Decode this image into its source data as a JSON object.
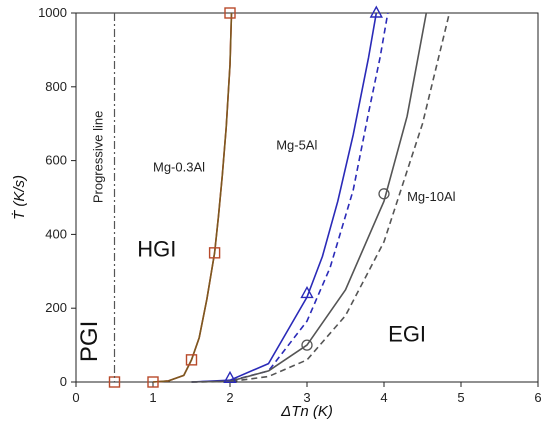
{
  "chart_data": {
    "type": "line",
    "xlabel": "ΔTn (K)",
    "ylabel": "Ṫ  (K/s)",
    "xlim": [
      0,
      6
    ],
    "ylim": [
      0,
      1000
    ],
    "xticks": [
      "0",
      "1",
      "2",
      "3",
      "4",
      "5",
      "6"
    ],
    "yticks": [
      "0",
      "200",
      "400",
      "600",
      "800",
      "1000"
    ],
    "grid": false,
    "series": [
      {
        "name": "Mg-0.3Al",
        "color": "#e03030",
        "dash": false,
        "line_points": [
          [
            1.0,
            0
          ],
          [
            1.2,
            3
          ],
          [
            1.4,
            18
          ],
          [
            1.5,
            60
          ],
          [
            1.6,
            120
          ],
          [
            1.7,
            225
          ],
          [
            1.8,
            350
          ],
          [
            1.85,
            450
          ],
          [
            1.9,
            560
          ],
          [
            1.95,
            690
          ],
          [
            2.0,
            860
          ],
          [
            2.02,
            1000
          ]
        ],
        "marker": "square",
        "marker_points": [
          [
            0.5,
            0
          ],
          [
            1.0,
            0
          ],
          [
            1.5,
            60
          ],
          [
            1.8,
            350
          ],
          [
            2.0,
            1000
          ]
        ]
      },
      {
        "name": "Mg-0.3Al fit",
        "color": "#7a5a20",
        "dash": false,
        "line_points": [
          [
            1.0,
            0
          ],
          [
            1.2,
            3
          ],
          [
            1.4,
            18
          ],
          [
            1.5,
            60
          ],
          [
            1.6,
            120
          ],
          [
            1.7,
            225
          ],
          [
            1.8,
            350
          ],
          [
            1.85,
            450
          ],
          [
            1.9,
            560
          ],
          [
            1.95,
            690
          ],
          [
            2.0,
            860
          ],
          [
            2.02,
            1000
          ]
        ]
      },
      {
        "name": "Mg-5Al",
        "color": "#2a2ab8",
        "dash": false,
        "line_points": [
          [
            1.5,
            0
          ],
          [
            2.0,
            5
          ],
          [
            2.5,
            50
          ],
          [
            3.0,
            230
          ],
          [
            3.2,
            340
          ],
          [
            3.4,
            490
          ],
          [
            3.6,
            670
          ],
          [
            3.8,
            880
          ],
          [
            3.9,
            1000
          ]
        ],
        "marker": "triangle",
        "marker_points": [
          [
            2.0,
            10
          ],
          [
            3.0,
            240
          ],
          [
            3.9,
            1000
          ]
        ]
      },
      {
        "name": "Mg-5Al dashed",
        "color": "#2a2ab8",
        "dash": true,
        "line_points": [
          [
            1.5,
            0
          ],
          [
            2.0,
            3
          ],
          [
            2.5,
            30
          ],
          [
            3.0,
            165
          ],
          [
            3.3,
            310
          ],
          [
            3.6,
            520
          ],
          [
            3.8,
            730
          ],
          [
            3.95,
            880
          ],
          [
            4.05,
            1000
          ]
        ]
      },
      {
        "name": "Mg-10Al",
        "color": "#555555",
        "dash": false,
        "line_points": [
          [
            1.5,
            0
          ],
          [
            2.0,
            2
          ],
          [
            2.5,
            30
          ],
          [
            3.0,
            100
          ],
          [
            3.5,
            250
          ],
          [
            4.0,
            490
          ],
          [
            4.3,
            720
          ],
          [
            4.55,
            1000
          ]
        ],
        "marker": "circle",
        "marker_points": [
          [
            3.0,
            100
          ],
          [
            4.0,
            510
          ]
        ]
      },
      {
        "name": "Mg-10Al dashed",
        "color": "#555555",
        "dash": true,
        "line_points": [
          [
            1.5,
            0
          ],
          [
            2.0,
            1
          ],
          [
            2.5,
            15
          ],
          [
            3.0,
            60
          ],
          [
            3.5,
            180
          ],
          [
            4.0,
            380
          ],
          [
            4.5,
            700
          ],
          [
            4.85,
            1000
          ]
        ]
      }
    ],
    "series_labels": [
      {
        "text": "Mg-0.3Al",
        "x": 1.0,
        "y": 570
      },
      {
        "text": "Mg-5Al",
        "x": 2.6,
        "y": 630
      },
      {
        "text": "Mg-10Al",
        "x": 4.3,
        "y": 490
      }
    ],
    "progressive_line": {
      "x": 0.5,
      "label": "Progressive line"
    },
    "regions": [
      {
        "text": "PGI",
        "x": 0.27,
        "y": 110,
        "size": 24,
        "rotate": -90
      },
      {
        "text": "HGI",
        "x": 1.05,
        "y": 340,
        "size": 22,
        "rotate": 0
      },
      {
        "text": "EGI",
        "x": 4.3,
        "y": 110,
        "size": 22,
        "rotate": 0
      }
    ]
  }
}
